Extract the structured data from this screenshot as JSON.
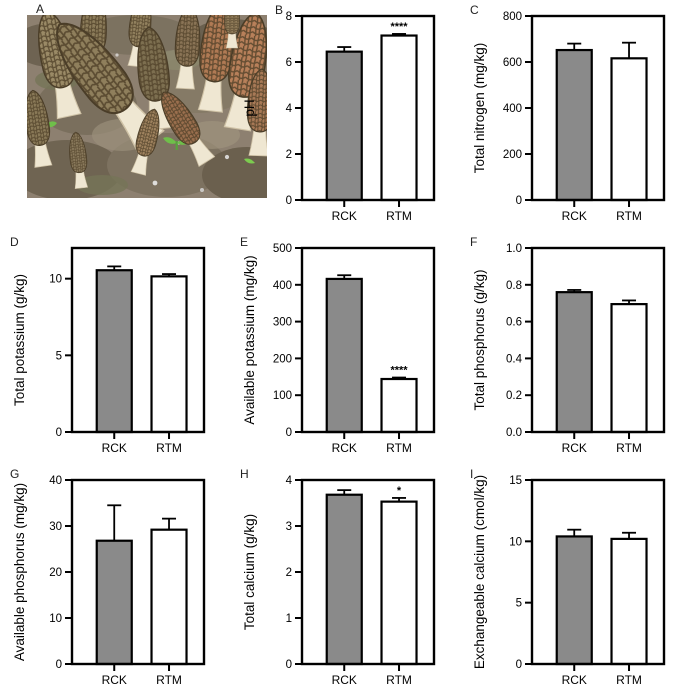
{
  "figure": {
    "panel_a_label": "A"
  },
  "series": {
    "names": [
      "RCK",
      "RTM"
    ],
    "colors": [
      "#8a8a8a",
      "#ffffff"
    ],
    "bar_stroke": "#000000"
  },
  "chart_data": [
    {
      "panel": "B",
      "type": "bar",
      "title": "",
      "xlabel": "",
      "ylabel": "pH",
      "categories": [
        "RCK",
        "RTM"
      ],
      "values": [
        6.45,
        7.15
      ],
      "errors": [
        0.2,
        0.07
      ],
      "significance": [
        "",
        "****"
      ],
      "ylim": [
        0,
        8
      ],
      "yticks": [
        "0",
        "2",
        "4",
        "6",
        "8"
      ],
      "legend": "none",
      "grid": false
    },
    {
      "panel": "C",
      "type": "bar",
      "title": "",
      "xlabel": "",
      "ylabel": "Total nitrogen (mg/kg)",
      "categories": [
        "RCK",
        "RTM"
      ],
      "values": [
        652,
        616
      ],
      "errors": [
        28,
        68
      ],
      "significance": [
        "",
        ""
      ],
      "ylim": [
        0,
        800
      ],
      "yticks": [
        "0",
        "200",
        "400",
        "600",
        "800"
      ],
      "legend": "none",
      "grid": false
    },
    {
      "panel": "D",
      "type": "bar",
      "title": "",
      "xlabel": "",
      "ylabel": "Total potassium (g/kg)",
      "categories": [
        "RCK",
        "RTM"
      ],
      "values": [
        10.55,
        10.15
      ],
      "errors": [
        0.25,
        0.15
      ],
      "significance": [
        "",
        ""
      ],
      "ylim": [
        0,
        12
      ],
      "yticks": [
        "0",
        "5",
        "10"
      ],
      "legend": "none",
      "grid": false
    },
    {
      "panel": "E",
      "type": "bar",
      "title": "",
      "xlabel": "",
      "ylabel": "Available potassium (mg/kg)",
      "categories": [
        "RCK",
        "RTM"
      ],
      "values": [
        416,
        144
      ],
      "errors": [
        10,
        4
      ],
      "significance": [
        "",
        "****"
      ],
      "ylim": [
        0,
        500
      ],
      "yticks": [
        "0",
        "100",
        "200",
        "300",
        "400",
        "500"
      ],
      "legend": "none",
      "grid": false
    },
    {
      "panel": "F",
      "type": "bar",
      "title": "",
      "xlabel": "",
      "ylabel": "Total phosphorus (g/kg)",
      "categories": [
        "RCK",
        "RTM"
      ],
      "values": [
        0.76,
        0.695
      ],
      "errors": [
        0.012,
        0.02
      ],
      "significance": [
        "",
        ""
      ],
      "ylim": [
        0,
        1
      ],
      "yticks": [
        "0.0",
        "0.2",
        "0.4",
        "0.6",
        "0.8",
        "1.0"
      ],
      "legend": "none",
      "grid": false
    },
    {
      "panel": "G",
      "type": "bar",
      "title": "",
      "xlabel": "",
      "ylabel": "Available phosphorus (mg/kg)",
      "categories": [
        "RCK",
        "RTM"
      ],
      "values": [
        26.8,
        29.2
      ],
      "errors": [
        7.7,
        2.4
      ],
      "significance": [
        "",
        ""
      ],
      "ylim": [
        0,
        40
      ],
      "yticks": [
        "0",
        "10",
        "20",
        "30",
        "40"
      ],
      "legend": "none",
      "grid": false
    },
    {
      "panel": "H",
      "type": "bar",
      "title": "",
      "xlabel": "",
      "ylabel": "Total calcium (g/kg)",
      "categories": [
        "RCK",
        "RTM"
      ],
      "values": [
        3.68,
        3.53
      ],
      "errors": [
        0.1,
        0.08
      ],
      "significance": [
        "",
        "*"
      ],
      "ylim": [
        0,
        4
      ],
      "yticks": [
        "0",
        "1",
        "2",
        "3",
        "4"
      ],
      "legend": "none",
      "grid": false
    },
    {
      "panel": "I",
      "type": "bar",
      "title": "",
      "xlabel": "",
      "ylabel": "Exchangeable calcium (cmol/kg)",
      "categories": [
        "RCK",
        "RTM"
      ],
      "values": [
        10.4,
        10.2
      ],
      "errors": [
        0.55,
        0.5
      ],
      "significance": [
        "",
        ""
      ],
      "ylim": [
        0,
        15
      ],
      "yticks": [
        "0",
        "5",
        "10",
        "15"
      ],
      "legend": "none",
      "grid": false
    }
  ]
}
